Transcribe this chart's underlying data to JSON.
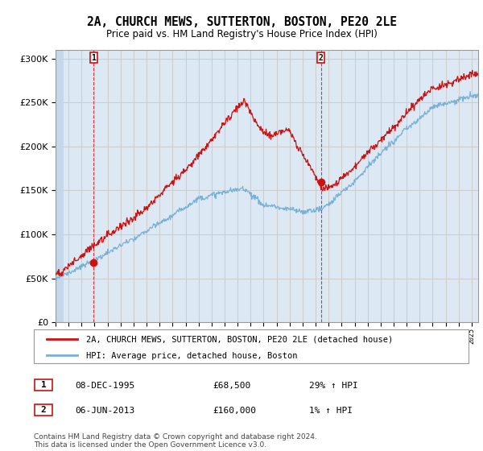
{
  "title": "2A, CHURCH MEWS, SUTTERTON, BOSTON, PE20 2LE",
  "subtitle": "Price paid vs. HM Land Registry's House Price Index (HPI)",
  "title_fontsize": 10.5,
  "subtitle_fontsize": 8.5,
  "xlim_start": 1993.0,
  "xlim_end": 2025.5,
  "ylim": [
    0,
    310000
  ],
  "yticks": [
    0,
    50000,
    100000,
    150000,
    200000,
    250000,
    300000
  ],
  "grid_color": "#cccccc",
  "background_color": "#dce9f5",
  "hatch_color": "#c5d8eb",
  "hpi_line_color": "#7ab0d4",
  "price_line_color": "#cc1111",
  "marker_color": "#cc1111",
  "sale1_x": 1995.92,
  "sale1_y": 68500,
  "sale2_x": 2013.42,
  "sale2_y": 160000,
  "vline_color": "#cc1111",
  "legend_line1": "2A, CHURCH MEWS, SUTTERTON, BOSTON, PE20 2LE (detached house)",
  "legend_line2": "HPI: Average price, detached house, Boston",
  "table_row1_num": "1",
  "table_row1_date": "08-DEC-1995",
  "table_row1_price": "£68,500",
  "table_row1_hpi": "29% ↑ HPI",
  "table_row2_num": "2",
  "table_row2_date": "06-JUN-2013",
  "table_row2_price": "£160,000",
  "table_row2_hpi": "1% ↑ HPI",
  "footer": "Contains HM Land Registry data © Crown copyright and database right 2024.\nThis data is licensed under the Open Government Licence v3.0."
}
